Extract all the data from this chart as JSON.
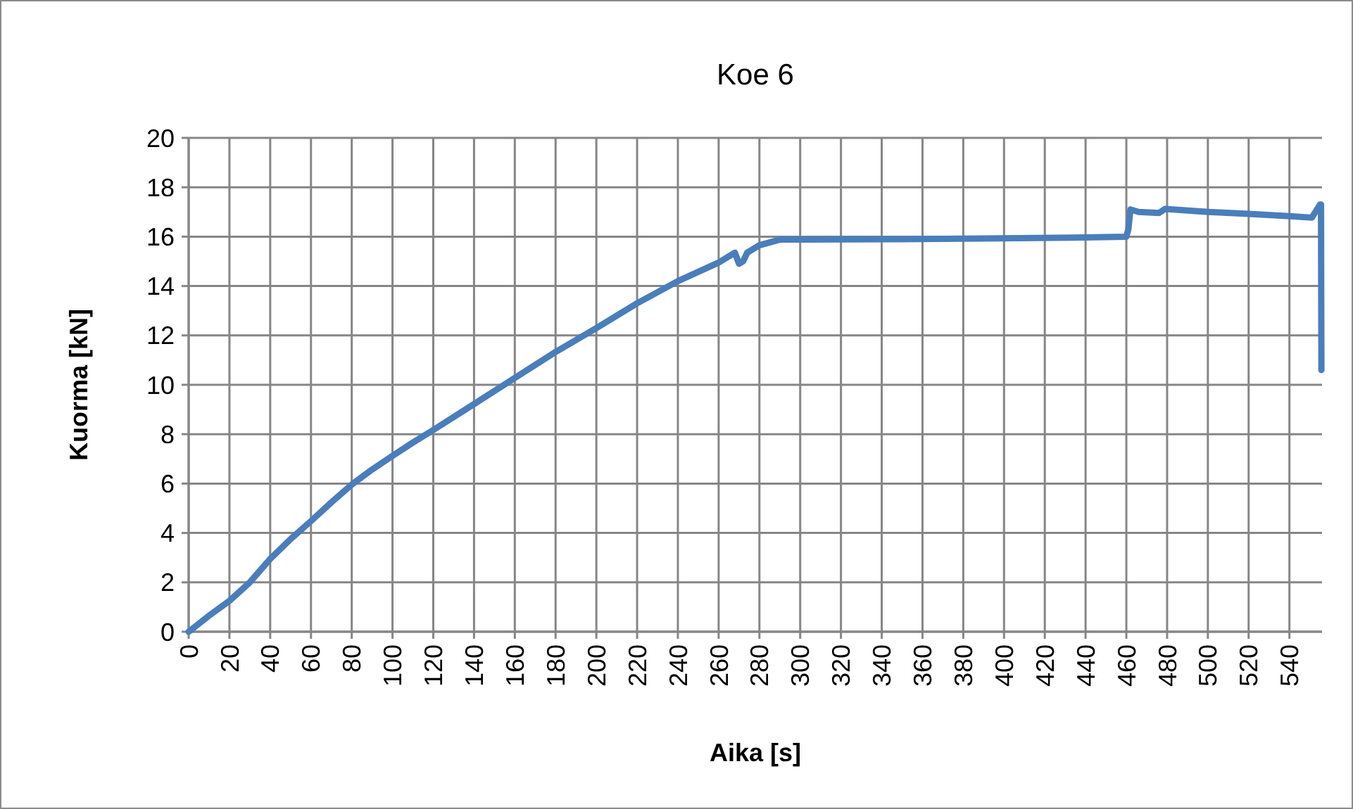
{
  "chart_data": {
    "type": "line",
    "title": "Koe 6",
    "xlabel": "Aika [s]",
    "ylabel": "Kuorma [kN]",
    "x": [
      0,
      10,
      20,
      30,
      40,
      50,
      60,
      70,
      80,
      90,
      100,
      110,
      120,
      140,
      160,
      180,
      200,
      220,
      240,
      260,
      268,
      270,
      272,
      274,
      280,
      290,
      300,
      350,
      400,
      440,
      460,
      461,
      462,
      466,
      476,
      479,
      500,
      520,
      540,
      551,
      555,
      555.5,
      555.7
    ],
    "series": [
      {
        "color": "#4a7ebb",
        "values": [
          0,
          0.65,
          1.25,
          2.0,
          2.95,
          3.75,
          4.48,
          5.24,
          5.96,
          6.57,
          7.12,
          7.66,
          8.17,
          9.22,
          10.28,
          11.33,
          12.3,
          13.3,
          14.2,
          14.95,
          15.35,
          14.9,
          15.0,
          15.35,
          15.65,
          15.88,
          15.88,
          15.9,
          15.93,
          15.97,
          16.0,
          16.3,
          17.1,
          17.0,
          16.96,
          17.12,
          17.0,
          16.92,
          16.83,
          16.77,
          17.3,
          17.3,
          10.6
        ]
      }
    ],
    "xlim": [
      0,
      556
    ],
    "ylim": [
      0,
      20
    ],
    "xticks": [
      0,
      20,
      40,
      60,
      80,
      100,
      120,
      140,
      160,
      180,
      200,
      220,
      240,
      260,
      280,
      300,
      320,
      340,
      360,
      380,
      400,
      420,
      440,
      460,
      480,
      500,
      520,
      540
    ],
    "yticks": [
      0,
      2,
      4,
      6,
      8,
      10,
      12,
      14,
      16,
      18,
      20
    ],
    "grid": true,
    "line_style": "solid"
  }
}
